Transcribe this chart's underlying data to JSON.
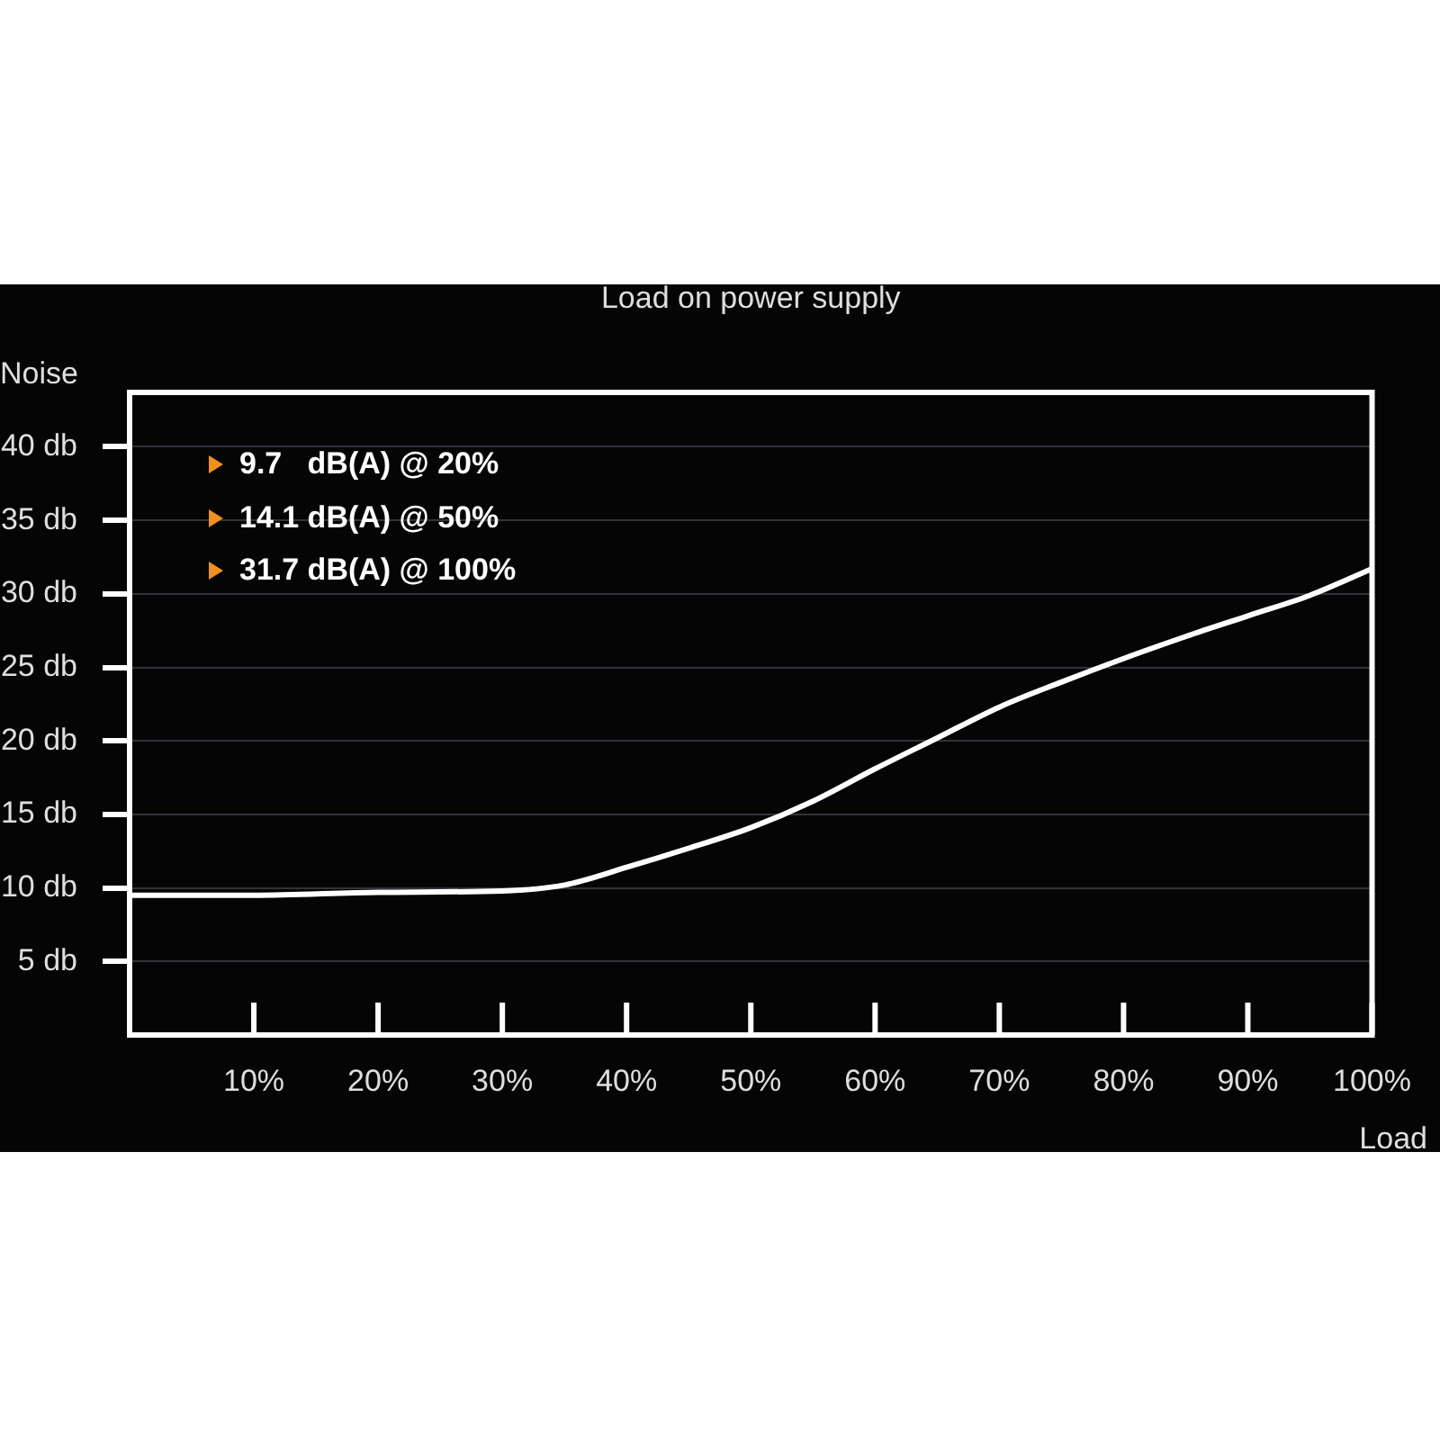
{
  "chart_data": {
    "type": "line",
    "title": "Load on power supply",
    "xlabel": "Load",
    "ylabel": "Noise",
    "annotations": [
      "9.7   dB(A) @ 20%",
      "14.1 dB(A) @ 50%",
      "31.7 dB(A) @ 100%"
    ],
    "x": [
      0,
      10,
      20,
      30,
      35,
      40,
      45,
      50,
      55,
      60,
      65,
      70,
      75,
      80,
      85,
      90,
      95,
      100
    ],
    "series": [
      {
        "color": "#ffffff",
        "values": [
          9.5,
          9.5,
          9.7,
          9.8,
          10.2,
          11.4,
          12.7,
          14.1,
          15.9,
          18.1,
          20.2,
          22.3,
          24.0,
          25.6,
          27.1,
          28.5,
          29.9,
          31.7
        ]
      }
    ],
    "xlim": [
      0,
      100
    ],
    "xticks": [
      {
        "value": 10,
        "label": "10%"
      },
      {
        "value": 20,
        "label": "20%"
      },
      {
        "value": 30,
        "label": "30%"
      },
      {
        "value": 40,
        "label": "40%"
      },
      {
        "value": 50,
        "label": "50%"
      },
      {
        "value": 60,
        "label": "60%"
      },
      {
        "value": 70,
        "label": "70%"
      },
      {
        "value": 80,
        "label": "80%"
      },
      {
        "value": 90,
        "label": "90%"
      },
      {
        "value": 100,
        "label": "100%"
      }
    ],
    "ylim": [
      0,
      43.7
    ],
    "yticks": [
      {
        "value": 5,
        "label": "5 db"
      },
      {
        "value": 10,
        "label": "10 db"
      },
      {
        "value": 15,
        "label": "15 db"
      },
      {
        "value": 20,
        "label": "20 db"
      },
      {
        "value": 25,
        "label": "25 db"
      },
      {
        "value": 30,
        "label": "30 db"
      },
      {
        "value": 35,
        "label": "35 db"
      },
      {
        "value": 40,
        "label": "40 db"
      }
    ],
    "grid": "y",
    "legend": false,
    "marker": "none"
  }
}
